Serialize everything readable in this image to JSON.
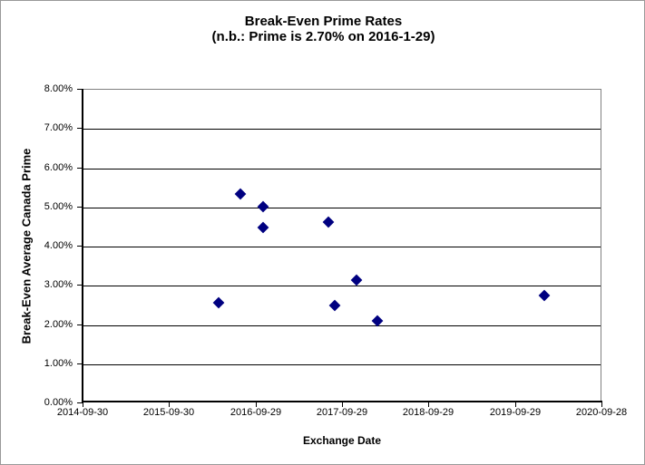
{
  "chart_data": {
    "type": "scatter",
    "title": "Break-Even Prime Rates",
    "subtitle": "(n.b.: Prime is 2.70% on 2016-1-29)",
    "xlabel": "Exchange Date",
    "ylabel": "Break-Even Average Canada Prime",
    "x_axis": {
      "min_date": "2014-09-30",
      "max_date": "2020-09-28",
      "tick_labels": [
        "2014-09-30",
        "2015-09-30",
        "2016-09-29",
        "2017-09-29",
        "2018-09-29",
        "2019-09-29",
        "2020-09-28"
      ]
    },
    "y_axis": {
      "min": 0,
      "max": 8,
      "tick_step": 1,
      "tick_labels": [
        "0.00%",
        "1.00%",
        "2.00%",
        "3.00%",
        "4.00%",
        "5.00%",
        "6.00%",
        "7.00%",
        "8.00%"
      ]
    },
    "grid": true,
    "legend_position": "none",
    "marker": {
      "shape": "diamond",
      "color": "#000080"
    },
    "points": [
      {
        "date": "2016-04-26",
        "value_pct": 2.54
      },
      {
        "date": "2016-07-28",
        "value_pct": 5.31
      },
      {
        "date": "2016-10-31",
        "value_pct": 5.0
      },
      {
        "date": "2016-10-31",
        "value_pct": 4.46
      },
      {
        "date": "2017-08-03",
        "value_pct": 4.6
      },
      {
        "date": "2017-08-31",
        "value_pct": 2.48
      },
      {
        "date": "2017-11-30",
        "value_pct": 3.13
      },
      {
        "date": "2018-02-26",
        "value_pct": 2.08
      },
      {
        "date": "2020-01-31",
        "value_pct": 2.73
      }
    ],
    "style_colors": {
      "plot_border": "#808080",
      "gridline": "#000000",
      "axis": "#000000",
      "background": "#ffffff",
      "chart_border": "#999999"
    }
  }
}
